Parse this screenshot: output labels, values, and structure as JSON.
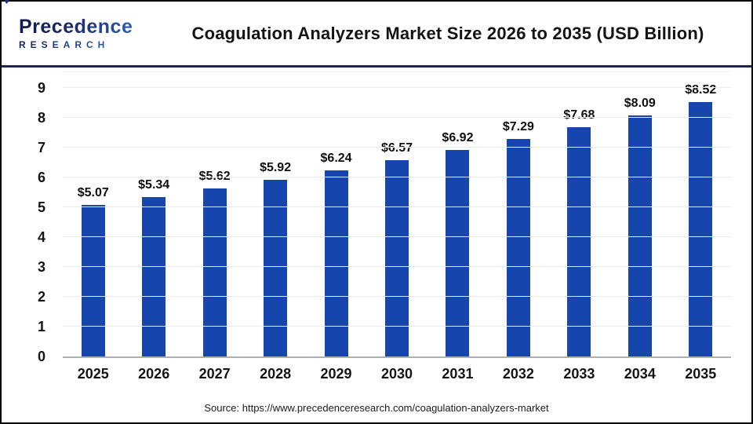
{
  "header": {
    "logo": {
      "line1": "Precedence",
      "line2": "RESEARCH"
    },
    "title": "Coagulation Analyzers Market Size 2026 to 2035 (USD Billion)"
  },
  "chart_data": {
    "type": "bar",
    "title": "Coagulation Analyzers Market Size 2026 to 2035 (USD Billion)",
    "categories": [
      "2025",
      "2026",
      "2027",
      "2028",
      "2029",
      "2030",
      "2031",
      "2032",
      "2033",
      "2034",
      "2035"
    ],
    "values": [
      5.07,
      5.34,
      5.62,
      5.92,
      6.24,
      6.57,
      6.92,
      7.29,
      7.68,
      8.09,
      8.52
    ],
    "value_labels": [
      "$5.07",
      "$5.34",
      "$5.62",
      "$5.92",
      "$6.24",
      "$6.57",
      "$6.92",
      "$7.29",
      "$7.68",
      "$8.09",
      "$8.52"
    ],
    "xlabel": "",
    "ylabel": "",
    "ylim": [
      0,
      9
    ],
    "yticks": [
      0,
      1,
      2,
      3,
      4,
      5,
      6,
      7,
      8,
      9
    ],
    "grid": true,
    "legend": false,
    "bar_color": "#1745ae"
  },
  "footer": {
    "source": "Source: https://www.precedenceresearch.com/coagulation-analyzers-market"
  },
  "colors": {
    "bar": "#1745ae",
    "header_rule": "#1e2356",
    "outer_border": "#000000",
    "gridline": "#ebebeb",
    "axis_line": "#b0b0b0",
    "logo_dark": "#10194d",
    "logo_blue": "#3a7bd5"
  }
}
